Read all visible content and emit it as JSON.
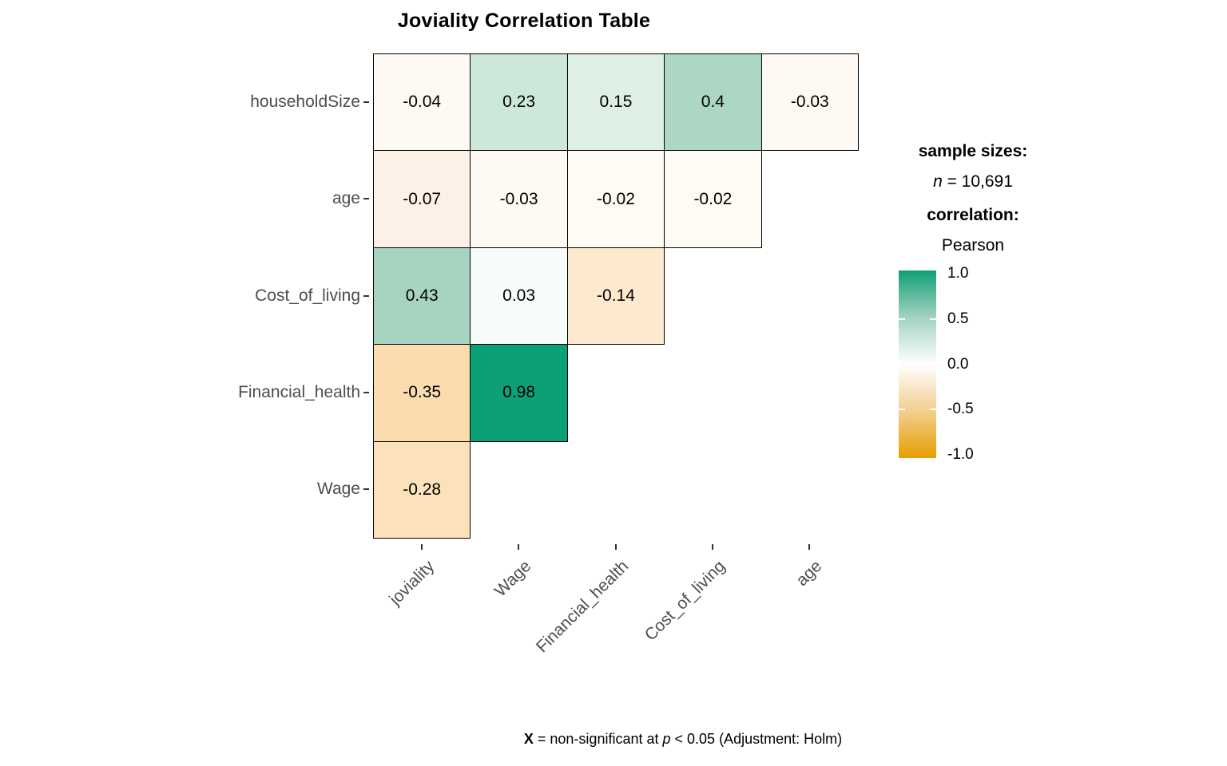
{
  "title": "Joviality Correlation Table",
  "legend": {
    "sample_sizes_label": "sample sizes:",
    "n_symbol": "n",
    "n_value": " = 10,691",
    "correlation_label": "correlation:",
    "method": "Pearson"
  },
  "caption": {
    "x_symbol": "X",
    "mid": " = non-significant at ",
    "p_symbol": "p",
    "end": " < 0.05 (Adjustment: Holm)"
  },
  "chart_data": {
    "type": "heatmap",
    "title": "Joviality Correlation Table",
    "x_categories": [
      "joviality",
      "Wage",
      "Financial_health",
      "Cost_of_living",
      "age"
    ],
    "y_categories": [
      "householdSize",
      "age",
      "Cost_of_living",
      "Financial_health",
      "Wage"
    ],
    "correlation_method": "Pearson",
    "sample_size_text": "n = 10,691",
    "significance_note": "X = non-significant at p < 0.05 (Adjustment: Holm)",
    "legend_position": "right",
    "colorbar": {
      "ticks": [
        "1.0",
        "0.5",
        "0.0",
        "-0.5",
        "-1.0"
      ],
      "range": [
        -1.0,
        1.0
      ],
      "top_color": "#109E76",
      "upper_mid_color": "#A2D3C0",
      "mid_color": "#FFFFFF",
      "lower_mid_color": "#F3CE8F",
      "bottom_color": "#E69F00"
    },
    "cells": [
      {
        "row": 0,
        "col": 0,
        "label": "-0.04",
        "value": -0.04,
        "color": "#FEF9F2"
      },
      {
        "row": 0,
        "col": 1,
        "label": "0.23",
        "value": 0.23,
        "color": "#CDE8DA"
      },
      {
        "row": 0,
        "col": 2,
        "label": "0.15",
        "value": 0.15,
        "color": "#DEEFE6"
      },
      {
        "row": 0,
        "col": 3,
        "label": "0.4",
        "value": 0.4,
        "color": "#ABD7C4"
      },
      {
        "row": 0,
        "col": 4,
        "label": "-0.03",
        "value": -0.03,
        "color": "#FEFAF3"
      },
      {
        "row": 1,
        "col": 0,
        "label": "-0.07",
        "value": -0.07,
        "color": "#FDF1E7"
      },
      {
        "row": 1,
        "col": 1,
        "label": "-0.03",
        "value": -0.03,
        "color": "#FEF9F2"
      },
      {
        "row": 1,
        "col": 2,
        "label": "-0.02",
        "value": -0.02,
        "color": "#FEFAF4"
      },
      {
        "row": 1,
        "col": 3,
        "label": "-0.02",
        "value": -0.02,
        "color": "#FEFAF4"
      },
      {
        "row": 2,
        "col": 0,
        "label": "0.43",
        "value": 0.43,
        "color": "#A7D4C1"
      },
      {
        "row": 2,
        "col": 1,
        "label": "0.03",
        "value": 0.03,
        "color": "#F7FBF9"
      },
      {
        "row": 2,
        "col": 2,
        "label": "-0.14",
        "value": -0.14,
        "color": "#FDE9CE"
      },
      {
        "row": 3,
        "col": 0,
        "label": "-0.35",
        "value": -0.35,
        "color": "#FBDCAE"
      },
      {
        "row": 3,
        "col": 1,
        "label": "0.98",
        "value": 0.98,
        "color": "#0CA077"
      },
      {
        "row": 4,
        "col": 0,
        "label": "-0.28",
        "value": -0.28,
        "color": "#FCE2BB"
      }
    ]
  }
}
